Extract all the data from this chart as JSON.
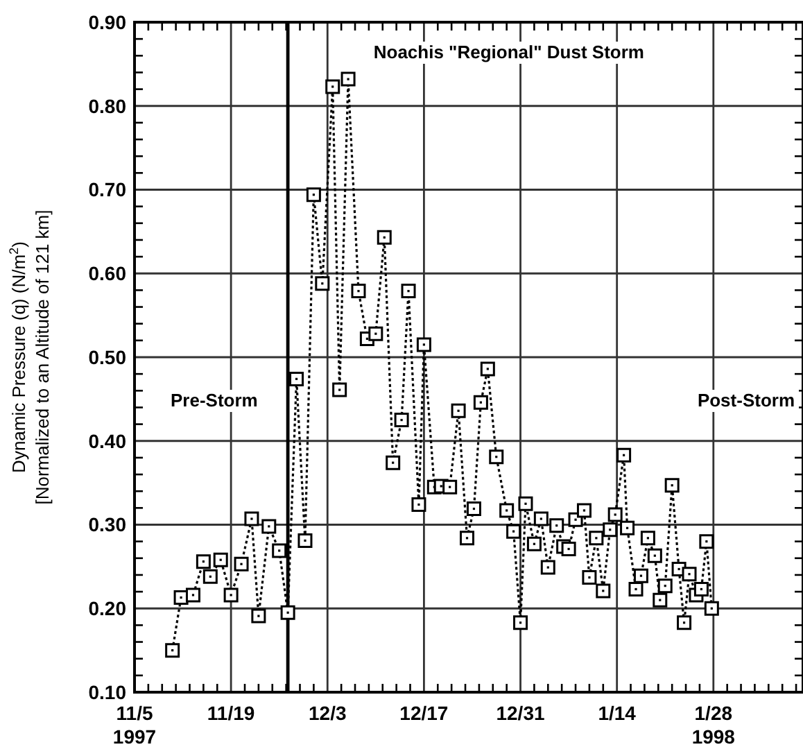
{
  "chart_data": {
    "type": "line",
    "ylabel": "Dynamic Pressure (q) (N/m$^{2}$)\n[Normalized to an Altitude of 121 km]",
    "x": [
      "1997-11-10T12:00",
      "1997-11-11T18:00",
      "1997-11-13T12:00",
      "1997-11-15",
      "1997-11-16",
      "1997-11-17T12:00",
      "1997-11-19",
      "1997-11-20T12:00",
      "1997-11-22",
      "1997-11-23",
      "1997-11-24T12:00",
      "1997-11-26",
      "1997-11-27T06:00",
      "1997-11-28T12:00",
      "1997-11-29T18:00",
      "1997-12-01",
      "1997-12-02T06:00",
      "1997-12-03T18:00",
      "1997-12-04T18:00",
      "1997-12-06",
      "1997-12-07T12:00",
      "1997-12-08T18:00",
      "1997-12-10",
      "1997-12-11T06:00",
      "1997-12-12T12:00",
      "1997-12-13T18:00",
      "1997-12-14T18:00",
      "1997-12-16T06:00",
      "1997-12-17",
      "1997-12-18T12:00",
      "1997-12-19T12:00",
      "1997-12-20T18:00",
      "1997-12-22",
      "1997-12-23T06:00",
      "1997-12-24T06:00",
      "1997-12-25T06:00",
      "1997-12-26T06:00",
      "1997-12-27T12:00",
      "1997-12-29",
      "1997-12-30",
      "1997-12-31",
      "1997-12-31T18:00",
      "1998-01-02",
      "1998-01-03",
      "1998-01-04",
      "1998-01-05T06:00",
      "1998-01-06T06:00",
      "1998-01-07",
      "1998-01-08",
      "1998-01-09T06:00",
      "1998-01-10",
      "1998-01-11",
      "1998-01-12",
      "1998-01-13",
      "1998-01-13T18:00",
      "1998-01-15",
      "1998-01-15T12:00",
      "1998-01-16T18:00",
      "1998-01-17T12:00",
      "1998-01-18T12:00",
      "1998-01-19T12:00",
      "1998-01-20T06:00",
      "1998-01-21",
      "1998-01-22",
      "1998-01-23",
      "1998-01-23T18:00",
      "1998-01-24T12:00",
      "1998-01-25T12:00",
      "1998-01-26T06:00",
      "1998-01-27",
      "1998-01-27T18:00"
    ],
    "series": [
      {
        "color": "#000000",
        "values": [
          0.15,
          0.213,
          0.216,
          0.256,
          0.238,
          0.258,
          0.216,
          0.253,
          0.307,
          0.191,
          0.298,
          0.269,
          0.195,
          0.474,
          0.281,
          0.694,
          0.588,
          0.823,
          0.461,
          0.832,
          0.579,
          0.522,
          0.528,
          0.643,
          0.374,
          0.425,
          0.579,
          0.324,
          0.515,
          0.345,
          0.346,
          0.345,
          0.436,
          0.284,
          0.319,
          0.446,
          0.486,
          0.381,
          0.317,
          0.292,
          0.183,
          0.325,
          0.277,
          0.307,
          0.249,
          0.299,
          0.274,
          0.271,
          0.306,
          0.317,
          0.237,
          0.284,
          0.221,
          0.294,
          0.312,
          0.383,
          0.296,
          0.223,
          0.239,
          0.284,
          0.263,
          0.21,
          0.227,
          0.347,
          0.247,
          0.183,
          0.241,
          0.216,
          0.223,
          0.28,
          0.2
        ]
      }
    ],
    "xlim": [
      "1997-11-05",
      "1998-02-10"
    ],
    "xticks": [
      {
        "value": "1997-11-05",
        "label": "11/5\n1997"
      },
      {
        "value": "1997-11-07",
        "label": null
      },
      {
        "value": "1997-11-09",
        "label": null
      },
      {
        "value": "1997-11-11",
        "label": null
      },
      {
        "value": "1997-11-13",
        "label": null
      },
      {
        "value": "1997-11-15",
        "label": null
      },
      {
        "value": "1997-11-17",
        "label": null
      },
      {
        "value": "1997-11-19",
        "label": "11/19"
      },
      {
        "value": "1997-11-21",
        "label": null
      },
      {
        "value": "1997-11-23",
        "label": null
      },
      {
        "value": "1997-11-25",
        "label": null
      },
      {
        "value": "1997-11-27",
        "label": null
      },
      {
        "value": "1997-11-29",
        "label": null
      },
      {
        "value": "1997-12-01",
        "label": null
      },
      {
        "value": "1997-12-03",
        "label": "12/3"
      },
      {
        "value": "1997-12-05",
        "label": null
      },
      {
        "value": "1997-12-07",
        "label": null
      },
      {
        "value": "1997-12-09",
        "label": null
      },
      {
        "value": "1997-12-11",
        "label": null
      },
      {
        "value": "1997-12-13",
        "label": null
      },
      {
        "value": "1997-12-15",
        "label": null
      },
      {
        "value": "1997-12-17",
        "label": "12/17"
      },
      {
        "value": "1997-12-19",
        "label": null
      },
      {
        "value": "1997-12-21",
        "label": null
      },
      {
        "value": "1997-12-23",
        "label": null
      },
      {
        "value": "1997-12-25",
        "label": null
      },
      {
        "value": "1997-12-27",
        "label": null
      },
      {
        "value": "1997-12-29",
        "label": null
      },
      {
        "value": "1997-12-31",
        "label": "12/31"
      },
      {
        "value": "1998-01-02",
        "label": null
      },
      {
        "value": "1998-01-04",
        "label": null
      },
      {
        "value": "1998-01-06",
        "label": null
      },
      {
        "value": "1998-01-08",
        "label": null
      },
      {
        "value": "1998-01-10",
        "label": null
      },
      {
        "value": "1998-01-12",
        "label": null
      },
      {
        "value": "1998-01-14",
        "label": "1/14"
      },
      {
        "value": "1998-01-16",
        "label": null
      },
      {
        "value": "1998-01-18",
        "label": null
      },
      {
        "value": "1998-01-20",
        "label": null
      },
      {
        "value": "1998-01-22",
        "label": null
      },
      {
        "value": "1998-01-24",
        "label": null
      },
      {
        "value": "1998-01-26",
        "label": null
      },
      {
        "value": "1998-01-28",
        "label": "1/28\n1998"
      },
      {
        "value": "1998-01-30",
        "label": null
      },
      {
        "value": "1998-02-01",
        "label": null
      },
      {
        "value": "1998-02-03",
        "label": null
      },
      {
        "value": "1998-02-05",
        "label": null
      },
      {
        "value": "1998-02-07",
        "label": null
      },
      {
        "value": "1998-02-09",
        "label": null
      }
    ],
    "ylim": [
      0.1,
      0.9
    ],
    "yticks": [
      {
        "value": 0.1,
        "label": "0.10"
      },
      {
        "value": 0.12,
        "label": null
      },
      {
        "value": 0.14,
        "label": null
      },
      {
        "value": 0.16,
        "label": null
      },
      {
        "value": 0.18,
        "label": null
      },
      {
        "value": 0.2,
        "label": "0.20"
      },
      {
        "value": 0.22,
        "label": null
      },
      {
        "value": 0.24,
        "label": null
      },
      {
        "value": 0.26,
        "label": null
      },
      {
        "value": 0.28,
        "label": null
      },
      {
        "value": 0.3,
        "label": "0.30"
      },
      {
        "value": 0.32,
        "label": null
      },
      {
        "value": 0.34,
        "label": null
      },
      {
        "value": 0.36,
        "label": null
      },
      {
        "value": 0.38,
        "label": null
      },
      {
        "value": 0.4,
        "label": "0.40"
      },
      {
        "value": 0.42,
        "label": null
      },
      {
        "value": 0.44,
        "label": null
      },
      {
        "value": 0.46,
        "label": null
      },
      {
        "value": 0.48,
        "label": null
      },
      {
        "value": 0.5,
        "label": "0.50"
      },
      {
        "value": 0.52,
        "label": null
      },
      {
        "value": 0.54,
        "label": null
      },
      {
        "value": 0.56,
        "label": null
      },
      {
        "value": 0.58,
        "label": null
      },
      {
        "value": 0.6,
        "label": "0.60"
      },
      {
        "value": 0.62,
        "label": null
      },
      {
        "value": 0.64,
        "label": null
      },
      {
        "value": 0.66,
        "label": null
      },
      {
        "value": 0.68,
        "label": null
      },
      {
        "value": 0.7,
        "label": "0.70"
      },
      {
        "value": 0.72,
        "label": null
      },
      {
        "value": 0.74,
        "label": null
      },
      {
        "value": 0.76,
        "label": null
      },
      {
        "value": 0.78,
        "label": null
      },
      {
        "value": 0.8,
        "label": "0.80"
      },
      {
        "value": 0.82,
        "label": null
      },
      {
        "value": 0.84,
        "label": null
      },
      {
        "value": 0.86,
        "label": null
      },
      {
        "value": 0.88,
        "label": null
      },
      {
        "value": 0.9,
        "label": "0.90"
      }
    ],
    "ref_lines": [
      {
        "axis": "x",
        "value": "1997-11-27T06:00",
        "color": "#000000"
      }
    ],
    "annotations": [
      "Noachis \"Regional\" Dust Storm",
      "Pre-Storm",
      "Post-Storm"
    ],
    "grid": true,
    "marker": "square",
    "line_style": "dotted"
  }
}
